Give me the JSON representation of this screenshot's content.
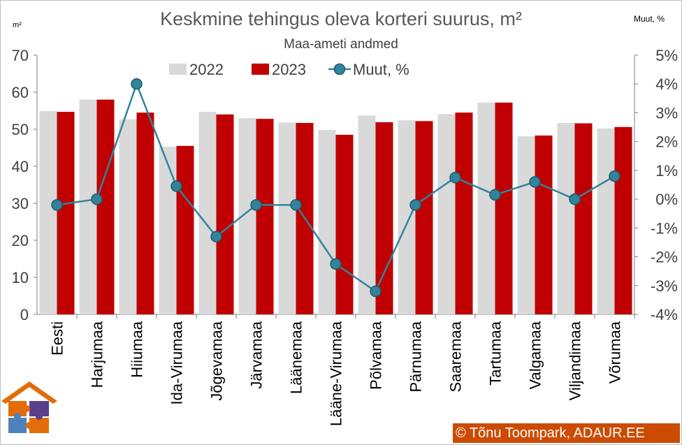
{
  "chart_data": {
    "type": "bar",
    "title": "Keskmine tehingus oleva korteri suurus, m²",
    "subtitle": "Maa-ameti andmed",
    "left_axis_unit": "m²",
    "right_axis_unit": "Muut, %",
    "categories": [
      "Eesti",
      "Harjumaa",
      "Hiiumaa",
      "Ida-Virumaa",
      "Jõgevamaa",
      "Järvamaa",
      "Läänemaa",
      "Lääne-Virumaa",
      "Põlvamaa",
      "Pärnumaa",
      "Saaremaa",
      "Tartumaa",
      "Valgamaa",
      "Viljandimaa",
      "Võrumaa"
    ],
    "series": [
      {
        "name": "2022",
        "kind": "bar",
        "axis": "left",
        "color": "#d9d9d9",
        "values": [
          54.9,
          58.0,
          52.7,
          45.3,
          54.7,
          53.0,
          51.8,
          49.8,
          53.7,
          52.4,
          54.1,
          57.2,
          48.1,
          51.7,
          50.2
        ]
      },
      {
        "name": "2023",
        "kind": "bar",
        "axis": "left",
        "color": "#c00000",
        "values": [
          54.7,
          58.0,
          54.5,
          45.5,
          54.0,
          52.8,
          51.7,
          48.5,
          51.9,
          52.2,
          54.5,
          57.2,
          48.3,
          51.6,
          50.6
        ]
      },
      {
        "name": "Muut, %",
        "kind": "line",
        "axis": "right",
        "color": "#31849b",
        "values": [
          -0.2,
          0.0,
          4.0,
          0.45,
          -1.3,
          -0.2,
          -0.2,
          -2.25,
          -3.2,
          -0.2,
          0.75,
          0.15,
          0.6,
          0.0,
          0.8
        ]
      }
    ],
    "ylim_left": [
      0,
      70
    ],
    "yticks_left": [
      "0",
      "10",
      "20",
      "30",
      "40",
      "50",
      "60",
      "70"
    ],
    "ylim_right": [
      -4,
      5
    ],
    "yticks_right": [
      "-4%",
      "-3%",
      "-2%",
      "-1%",
      "0%",
      "1%",
      "2%",
      "3%",
      "4%",
      "5%"
    ],
    "grid": false,
    "legend_position": "top-center"
  },
  "credit": "© Tõnu Toompark, ADAUR.EE"
}
